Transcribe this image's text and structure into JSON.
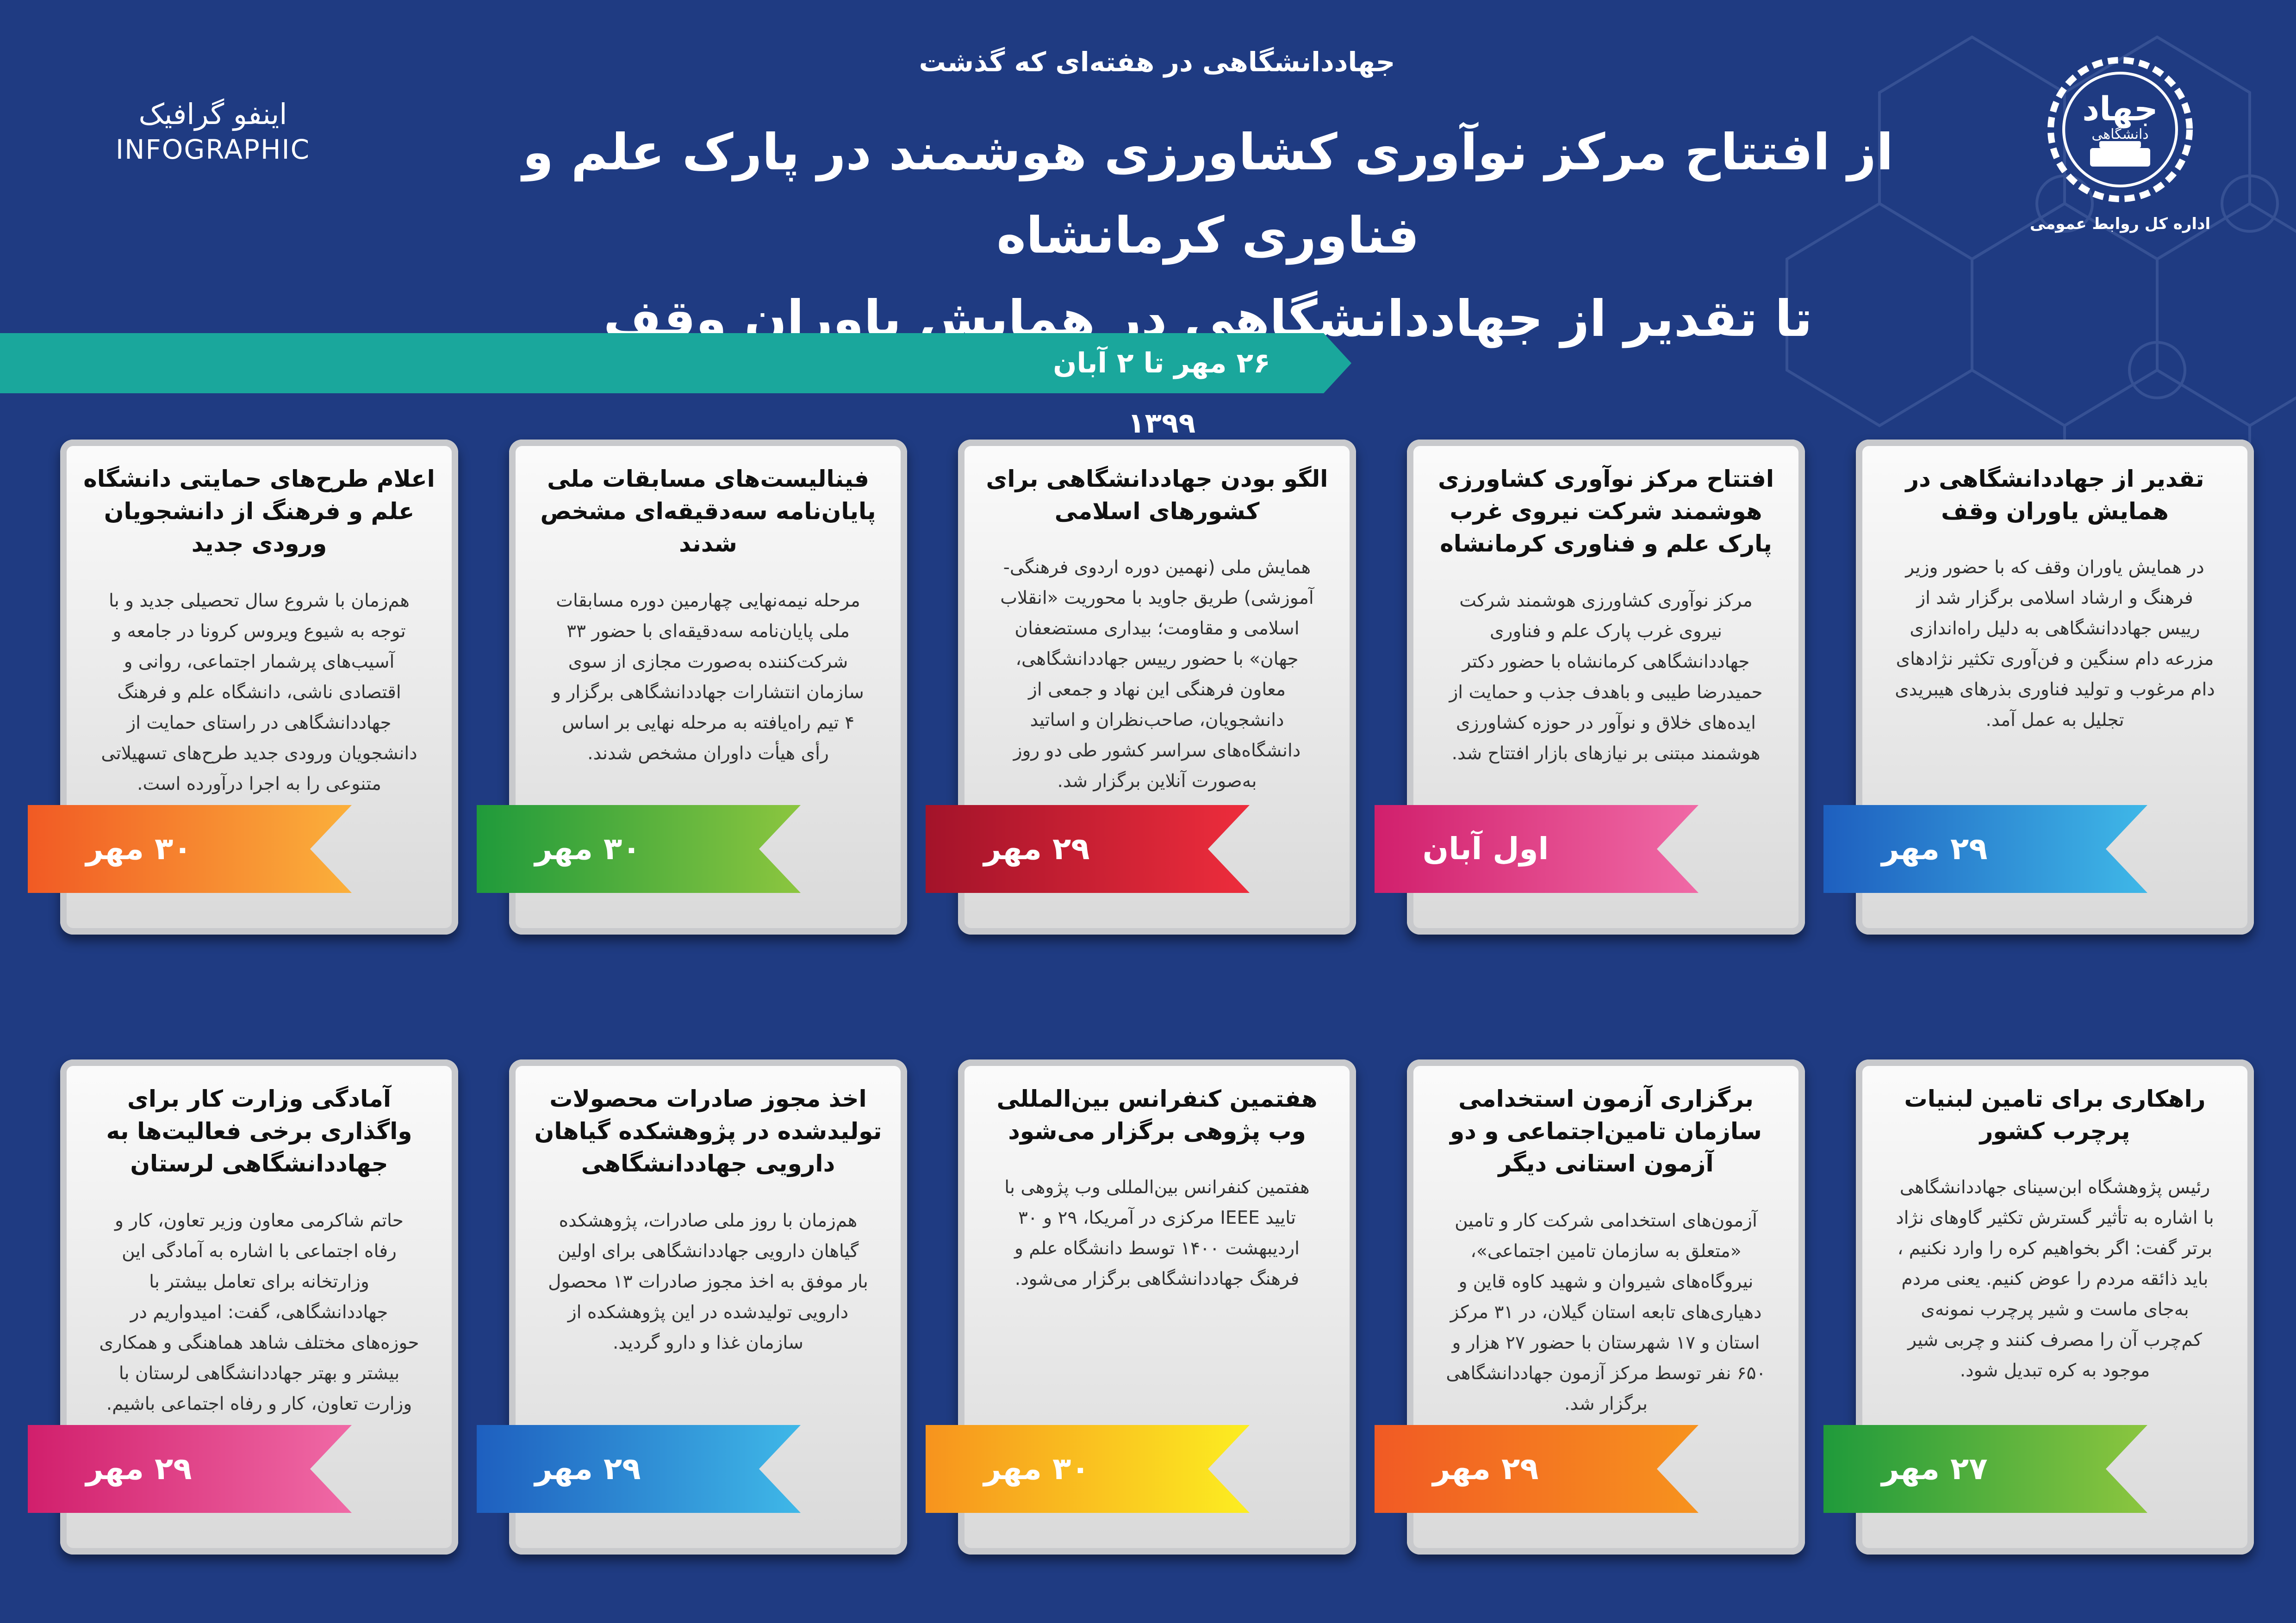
{
  "header": {
    "kicker": "جهاددانشگاهی در هفته‌ای که گذشت",
    "title_line1": "از افتتاح مرکز نوآوری کشاورزی هوشمند در پارک علم و فناوری کرمانشاه",
    "title_line2": "تا تقدیر از جهاددانشگاهی در همایش یاوران وقف",
    "date_range": "۲۶ مهر تا ۲ آبان ۱۳۹۹",
    "infographic_fa": "اینفو گرافیک",
    "infographic_en": "INFOGRAPHIC",
    "logo_word": "جهاد",
    "logo_sub": "دانشگاهی",
    "logo_caption": "اداره کل روابط عمومی"
  },
  "colors": {
    "background": "#1f3b82",
    "ribbon": "#1aa79c",
    "card": "#e6e6e6"
  },
  "cards_row1": [
    {
      "title": "تقدیر از جهاددانشگاهی در همایش یاوران وقف",
      "text": "در همایش یاوران وقف که با حضور وزیر فرهنگ و ارشاد اسلامی برگزار شد از رییس جهاددانشگاهی به دلیل راه‌اندازی مزرعه دام سنگین و فن‌آوری تکثیر نژادهای دام مرغوب و تولید فناوری بذرهای هیبریدی تجلیل به عمل آمد.",
      "date": "۲۹ مهر",
      "color1": "#1e5fbf",
      "color2": "#3fb8e8"
    },
    {
      "title": "افتتاح مرکز نوآوری کشاورزی هوشمند شرکت نیروی غرب پارک علم و فناوری کرمانشاه",
      "text": "مرکز نوآوری کشاورزی هوشمند شرکت نیروی غرب پارک علم و فناوری جهاددانشگاهی کرمانشاه با حضور دکتر حمیدرضا طیبی و باهدف جذب و حمایت از ایده‌های خلاق و نوآور در حوزه کشاورزی هوشمند مبتنی بر نیازهای بازار افتتاح شد.",
      "date": "اول آبان",
      "color1": "#d11f6c",
      "color2": "#f06aa6"
    },
    {
      "title": "الگو بودن جهاددانشگاهی برای کشورهای اسلامی",
      "text": "همایش ملی (نهمین دوره اردوی فرهنگی- آموزشی) طریق جاوید با محوریت «انقلاب اسلامی و مقاومت؛ بیداری مستضعفان جهان» با حضور رییس جهاددانشگاهی، معاون فرهنگی این نهاد و جمعی از دانشجویان، صاحب‌نظران و اساتید دانشگاه‌های سراسر کشور طی دو روز به‌صورت آنلاین برگزار شد.",
      "date": "۲۹ مهر",
      "color1": "#a3132a",
      "color2": "#ee2d3c"
    },
    {
      "title": "فینالیست‌های مسابقات ملی پایان‌نامه سه‌دقیقه‌ای مشخص شدند",
      "text": "مرحله نیمه‌نهایی چهارمین دوره مسابقات ملی پایان‌نامه سه‌دقیقه‌ای با حضور ۳۳ شرکت‌کننده به‌صورت مجازی از سوی سازمان انتشارات جهاددانشگاهی برگزار و ۴ تیم راه‌یافته به مرحله نهایی بر اساس رأی هیأت داوران مشخص شدند.",
      "date": "۳۰ مهر",
      "color1": "#1f9a3b",
      "color2": "#8cc63f"
    },
    {
      "title": "اعلام طرح‌های حمایتی دانشگاه علم و فرهنگ از دانشجویان ورودی جدید",
      "text": "هم‌زمان با شروع سال تحصیلی جدید و با توجه به شیوع ویروس کرونا در جامعه و آسیب‌های پرشمار اجتماعی، روانی و اقتصادی ناشی، دانشگاه علم و فرهنگ جهاددانشگاهی در راستای حمایت از دانشجویان ورودی جدید طرح‌های تسهیلاتی متنوعی را به اجرا درآورده است.",
      "date": "۳۰ مهر",
      "color1": "#f15a24",
      "color2": "#fbb03b"
    }
  ],
  "cards_row2": [
    {
      "title": "راهکاری برای تامین لبنیات پرچرب کشور",
      "text": "رئیس پژوهشگاه ابن‌سینای جهاددانشگاهی با اشاره به تأثیر گسترش تکثیر گاوهای نژاد برتر گفت: اگر بخواهیم کره را وارد نکنیم ، باید ذائقه مردم را عوض کنیم. یعنی مردم به‌جای ماست و شیر پرچرب نمونه‌ی کم‌چرب آن را مصرف کنند و چربی شیر موجود به کره تبدیل شود.",
      "date": "۲۷ مهر",
      "color1": "#1f9a3b",
      "color2": "#8cc63f"
    },
    {
      "title": "برگزاری آزمون استخدامی سازمان تامین‌اجتماعی و دو آزمون استانی دیگر",
      "text": "آزمون‌های استخدامی شرکت کار و تامین «متعلق به سازمان تامین اجتماعی»، نیروگاه‌های شیروان و شهید کاوه قاین و دهیاری‌های تابعه استان گیلان، در ۳۱ مرکز استان و ۱۷ شهرستان با حضور ۲۷ هزار و ۶۵۰ نفر توسط مرکز آزمون جهاددانشگاهی برگزار شد.",
      "date": "۲۹ مهر",
      "color1": "#f15a24",
      "color2": "#f7931e"
    },
    {
      "title": "هفتمین کنفرانس بین‌المللی وب پژوهی برگزار می‌شود",
      "text": "هفتمین کنفرانس بین‌المللی وب پژوهی با تایید IEEE مرکزی در آمریکا، ۲۹ و ۳۰ اردیبهشت ۱۴۰۰ توسط دانشگاه علم و فرهنگ جهاددانشگاهی برگزار می‌شود.",
      "date": "۳۰ مهر",
      "color1": "#f7931e",
      "color2": "#fcee21"
    },
    {
      "title": "اخذ مجوز صادرات محصولات تولیدشده در پژوهشکده گیاهان دارویی جهاددانشگاهی",
      "text": "هم‌زمان با روز ملی صادرات، پژوهشکده گیاهان دارویی جهاددانشگاهی برای اولین بار موفق به اخذ مجوز صادرات ۱۳ محصول دارویی تولیدشده در این پژوهشکده از سازمان غذا و دارو گردید.",
      "date": "۲۹ مهر",
      "color1": "#1e5fbf",
      "color2": "#3fb8e8"
    },
    {
      "title": "آمادگی وزارت کار برای واگذاری برخی فعالیت‌ها به جهاددانشگاهی لرستان",
      "text": "حاتم شاکرمی معاون وزیر تعاون، کار و رفاه اجتماعی با اشاره به آمادگی این وزارتخانه برای تعامل بیشتر با جهاددانشگاهی، گفت: امیدواریم در حوزه‌های مختلف شاهد هماهنگی و همکاری بیشتر و بهتر جهاددانشگاهی لرستان با وزارت تعاون، کار و رفاه اجتماعی باشیم.",
      "date": "۲۹ مهر",
      "color1": "#d11f6c",
      "color2": "#f06aa6"
    }
  ]
}
